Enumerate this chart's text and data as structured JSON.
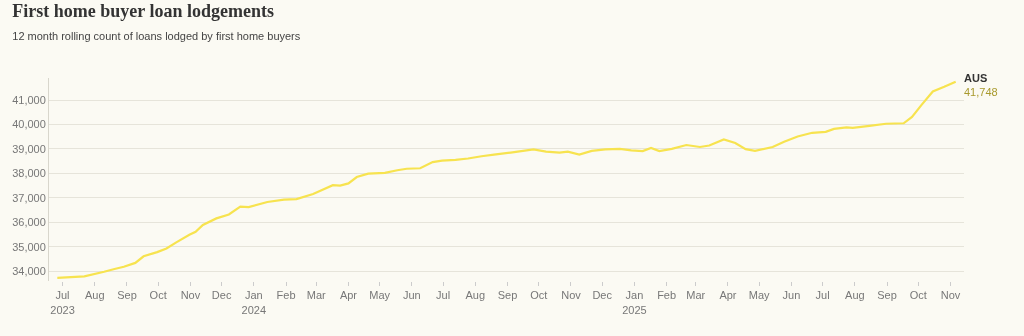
{
  "chart_data": {
    "type": "line",
    "title": "First home buyer loan lodgements",
    "subtitle": "12 month rolling count of loans lodged by first home buyers",
    "x": [
      "2023-06-26",
      "2023-07-22",
      "2023-08-10",
      "2023-08-20",
      "2023-08-29",
      "2023-09-09",
      "2023-09-17",
      "2023-09-30",
      "2023-10-09",
      "2023-10-18",
      "2023-10-31",
      "2023-11-06",
      "2023-11-13",
      "2023-11-26",
      "2023-12-08",
      "2023-12-19",
      "2023-12-27",
      "2024-01-14",
      "2024-01-30",
      "2024-02-11",
      "2024-02-27",
      "2024-03-17",
      "2024-03-24",
      "2024-04-01",
      "2024-04-09",
      "2024-04-20",
      "2024-05-06",
      "2024-05-18",
      "2024-05-27",
      "2024-06-09",
      "2024-06-21",
      "2024-06-30",
      "2024-07-13",
      "2024-07-25",
      "2024-08-07",
      "2024-08-19",
      "2024-09-04",
      "2024-09-26",
      "2024-10-08",
      "2024-10-21",
      "2024-10-29",
      "2024-11-09",
      "2024-11-21",
      "2024-12-04",
      "2024-12-18",
      "2024-12-29",
      "2025-01-09",
      "2025-01-17",
      "2025-01-25",
      "2025-02-06",
      "2025-02-20",
      "2025-03-05",
      "2025-03-14",
      "2025-03-28",
      "2025-04-08",
      "2025-04-18",
      "2025-04-27",
      "2025-05-14",
      "2025-05-25",
      "2025-06-07",
      "2025-06-21",
      "2025-07-04",
      "2025-07-12",
      "2025-07-24",
      "2025-07-30",
      "2025-08-15",
      "2025-08-31",
      "2025-09-17",
      "2025-09-25",
      "2025-10-04",
      "2025-10-15",
      "2025-10-26",
      "2025-11-06"
    ],
    "series": [
      {
        "name": "AUS",
        "color": "#f7e34f",
        "values": [
          33730,
          33790,
          33980,
          34090,
          34180,
          34340,
          34610,
          34780,
          34930,
          35170,
          35490,
          35610,
          35890,
          36160,
          36320,
          36640,
          36620,
          36830,
          36930,
          36950,
          37160,
          37520,
          37500,
          37590,
          37850,
          37990,
          38020,
          38130,
          38190,
          38210,
          38460,
          38520,
          38550,
          38610,
          38700,
          38770,
          38850,
          38980,
          38890,
          38850,
          38890,
          38770,
          38920,
          38980,
          39000,
          38940,
          38910,
          39040,
          38910,
          39000,
          39160,
          39080,
          39140,
          39390,
          39240,
          38990,
          38920,
          39080,
          39290,
          39510,
          39660,
          39700,
          39820,
          39880,
          39860,
          39940,
          40030,
          40050,
          40310,
          40790,
          41350,
          41540,
          41748
        ]
      }
    ],
    "annotations": [
      {
        "text": "41,748",
        "x": "2025-11-06",
        "y": 41748
      }
    ],
    "xlim": [
      "2023-06-18",
      "2025-11-14"
    ],
    "xticks": [
      {
        "value": "2023-07-01",
        "label": "Jul\n2023"
      },
      {
        "value": "2023-08-01",
        "label": "Aug"
      },
      {
        "value": "2023-09-01",
        "label": "Sep"
      },
      {
        "value": "2023-10-01",
        "label": "Oct"
      },
      {
        "value": "2023-11-01",
        "label": "Nov"
      },
      {
        "value": "2023-12-01",
        "label": "Dec"
      },
      {
        "value": "2024-01-01",
        "label": "Jan\n2024"
      },
      {
        "value": "2024-02-01",
        "label": "Feb"
      },
      {
        "value": "2024-03-01",
        "label": "Mar"
      },
      {
        "value": "2024-04-01",
        "label": "Apr"
      },
      {
        "value": "2024-05-01",
        "label": "May"
      },
      {
        "value": "2024-06-01",
        "label": "Jun"
      },
      {
        "value": "2024-07-01",
        "label": "Jul"
      },
      {
        "value": "2024-08-01",
        "label": "Aug"
      },
      {
        "value": "2024-09-01",
        "label": "Sep"
      },
      {
        "value": "2024-10-01",
        "label": "Oct"
      },
      {
        "value": "2024-11-01",
        "label": "Nov"
      },
      {
        "value": "2024-12-01",
        "label": "Dec"
      },
      {
        "value": "2025-01-01",
        "label": "Jan\n2025"
      },
      {
        "value": "2025-02-01",
        "label": "Feb"
      },
      {
        "value": "2025-03-01",
        "label": "Mar"
      },
      {
        "value": "2025-04-01",
        "label": "Apr"
      },
      {
        "value": "2025-05-01",
        "label": "May"
      },
      {
        "value": "2025-06-01",
        "label": "Jun"
      },
      {
        "value": "2025-07-01",
        "label": "Jul"
      },
      {
        "value": "2025-08-01",
        "label": "Aug"
      },
      {
        "value": "2025-09-01",
        "label": "Sep"
      },
      {
        "value": "2025-10-01",
        "label": "Oct"
      },
      {
        "value": "2025-11-01",
        "label": "Nov"
      }
    ],
    "yticks": [
      {
        "value": 34000,
        "label": "34,000"
      },
      {
        "value": 35000,
        "label": "35,000"
      },
      {
        "value": 36000,
        "label": "36,000"
      },
      {
        "value": 37000,
        "label": "37,000"
      },
      {
        "value": 38000,
        "label": "38,000"
      },
      {
        "value": 39000,
        "label": "39,000"
      },
      {
        "value": 40000,
        "label": "40,000"
      },
      {
        "value": 41000,
        "label": "41,000"
      }
    ],
    "ylim": [
      33600,
      41900
    ],
    "grid": "y",
    "legend": false,
    "marker": "none",
    "line_style": "solid"
  }
}
